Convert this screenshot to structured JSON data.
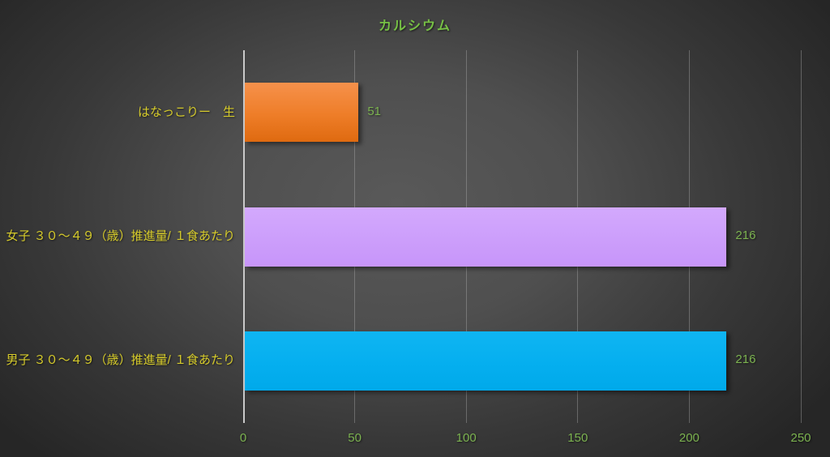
{
  "chart_data": {
    "type": "bar",
    "orientation": "horizontal",
    "title": "カルシウム",
    "categories": [
      "はなっこりー　生",
      "女子 ３０～４９（歳）推進量/ １食あたり",
      "男子 ３０～４９（歳）推進量/ １食あたり"
    ],
    "values": [
      51,
      216,
      216
    ],
    "data_labels": [
      "51",
      "216",
      "216"
    ],
    "x_ticks": [
      0,
      50,
      100,
      150,
      200,
      250
    ],
    "xlim": [
      0,
      250
    ],
    "grid": true,
    "legend_position": "none",
    "bar_fills": [
      {
        "top": "#F6914B",
        "mid": "#EE7D28",
        "bottom": "#DF6A10"
      },
      {
        "top": "#D3A9FD",
        "mid": "#CC9EFB",
        "bottom": "#C795F9"
      },
      {
        "top": "#0FB5F2",
        "mid": "#05AFEF",
        "bottom": "#00A9EA"
      }
    ],
    "colors": {
      "title": "#77C145",
      "category_label": "#D6CB2B",
      "data_label": "#7CB350",
      "axis_tick_label": "#7CB350",
      "axis_line": "#C9C9C9",
      "gridline": "rgba(185,185,185,0.38)"
    }
  }
}
